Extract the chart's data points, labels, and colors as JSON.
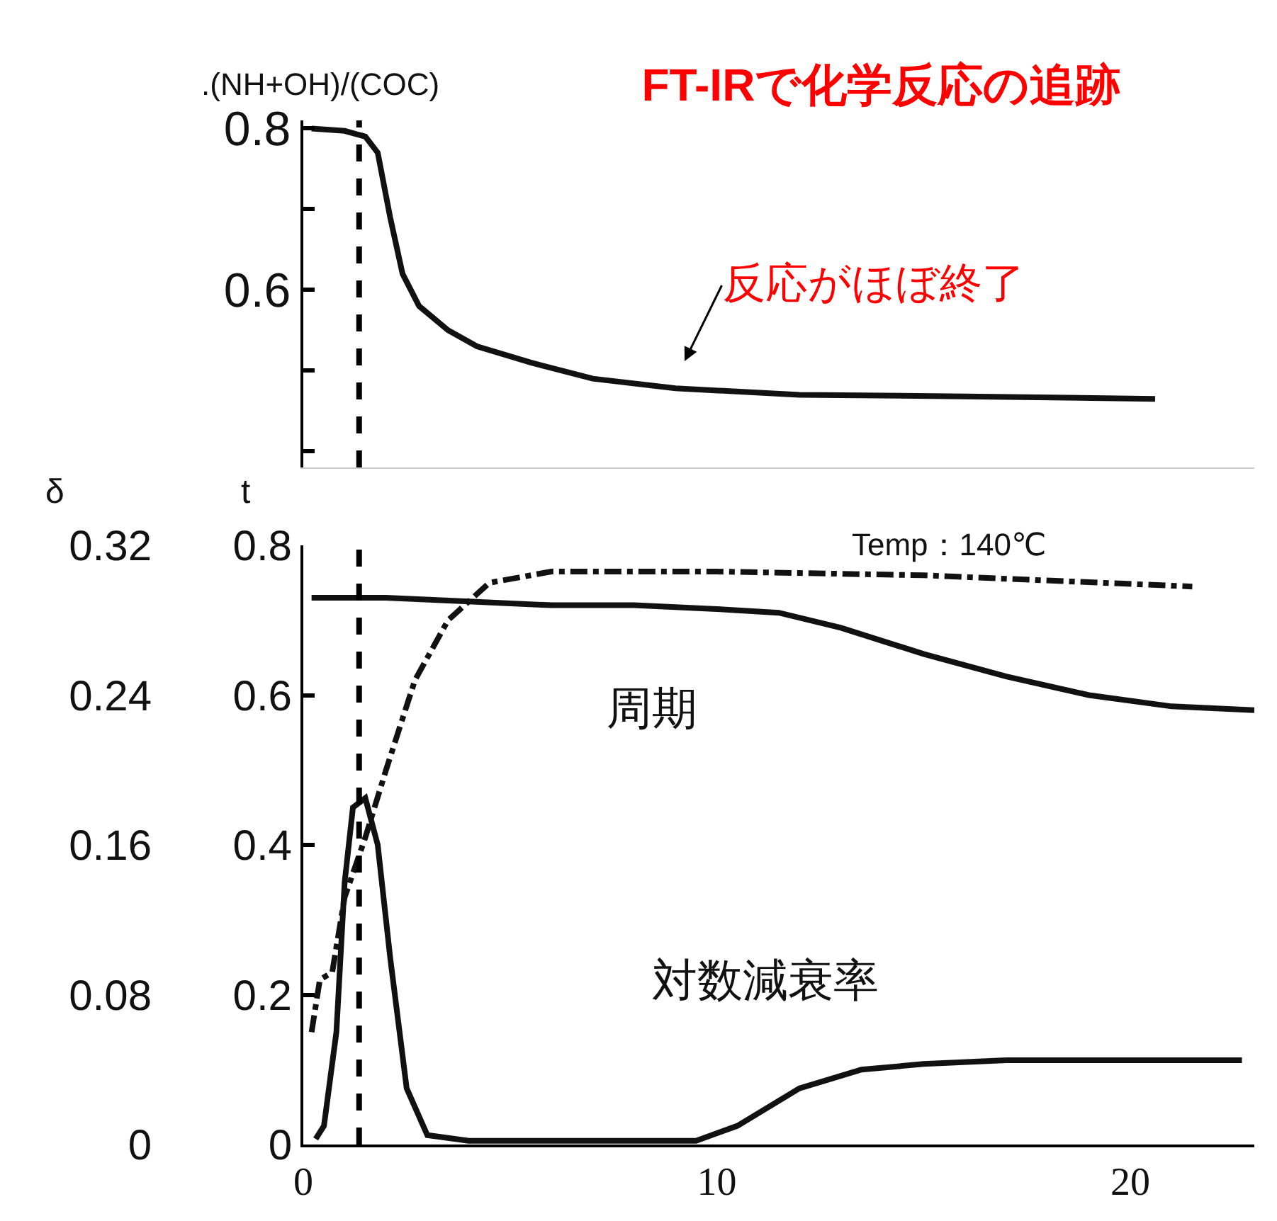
{
  "chart_data": [
    {
      "type": "line",
      "title": "FT-IRで化学反応の追跡",
      "ylabel": ".(NH+OH)/(COC)",
      "xlim": [
        0,
        23
      ],
      "xticks": [
        0,
        10,
        20
      ],
      "tick_labels": "y",
      "ylim": [
        0.38,
        0.81
      ],
      "yticks": [
        {
          "value": 0.4,
          "label": null
        },
        {
          "value": 0.5,
          "label": null
        },
        0.6,
        {
          "value": 0.7,
          "label": null
        },
        0.8
      ],
      "annotations": [
        "反応がほぼ終了"
      ],
      "ref_lines": [
        {
          "axis": "x",
          "value": 1.35,
          "line_style": "dashed",
          "color": "#000000"
        }
      ],
      "series": [
        {
          "color": "#111111",
          "x": [
            0.2,
            1,
            1.5,
            1.8,
            2.1,
            2.4,
            2.8,
            3.5,
            4.2,
            5.5,
            7,
            9,
            12,
            16,
            20.6
          ],
          "values": [
            0.8,
            0.797,
            0.79,
            0.77,
            0.69,
            0.62,
            0.58,
            0.55,
            0.53,
            0.51,
            0.49,
            0.478,
            0.47,
            0.468,
            0.465
          ]
        }
      ]
    },
    {
      "type": "line",
      "ylabel": "δ",
      "y2label": "t",
      "xlim": [
        0,
        23
      ],
      "xticks": [
        0,
        10,
        20
      ],
      "ylim": [
        0,
        0.32
      ],
      "yticks": [
        0,
        0.08,
        0.16,
        0.24,
        0.32
      ],
      "y2lim": [
        0,
        0.8
      ],
      "y2ticks": [
        0,
        0.2,
        0.4,
        0.6,
        0.8
      ],
      "annotations": [
        "Temp：140℃",
        "周期",
        "対数減衰率"
      ],
      "ref_lines": [
        {
          "axis": "x",
          "value": 1.35,
          "line_style": "dashed",
          "color": "#000000"
        }
      ],
      "series": [
        {
          "color": "#111111",
          "axis": "y2",
          "x": [
            0.2,
            2,
            4,
            6,
            8,
            10,
            11.5,
            13,
            15,
            17,
            19,
            21,
            23
          ],
          "values": [
            0.73,
            0.73,
            0.725,
            0.72,
            0.72,
            0.715,
            0.71,
            0.69,
            0.655,
            0.625,
            0.6,
            0.585,
            0.58
          ]
        },
        {
          "color": "#111111",
          "x": [
            0.3,
            0.5,
            0.8,
            1,
            1.2,
            1.5,
            1.8,
            2.1,
            2.5,
            3,
            4,
            6,
            8,
            9.5,
            10.5,
            12,
            13.5,
            15,
            17,
            20,
            22.7
          ],
          "values": [
            0.003,
            0.01,
            0.06,
            0.14,
            0.18,
            0.185,
            0.16,
            0.1,
            0.03,
            0.005,
            0.002,
            0.002,
            0.002,
            0.002,
            0.01,
            0.03,
            0.04,
            0.043,
            0.045,
            0.045,
            0.045
          ]
        },
        {
          "color": "#111111",
          "axis": "y2",
          "line_style": "dashed",
          "x": [
            0.2,
            0.4,
            0.7,
            1,
            1.5,
            2,
            2.7,
            3.5,
            4.5,
            6,
            10,
            15,
            21.5
          ],
          "values": [
            0.15,
            0.22,
            0.23,
            0.33,
            0.41,
            0.5,
            0.62,
            0.7,
            0.75,
            0.765,
            0.765,
            0.76,
            0.745
          ]
        }
      ]
    }
  ]
}
